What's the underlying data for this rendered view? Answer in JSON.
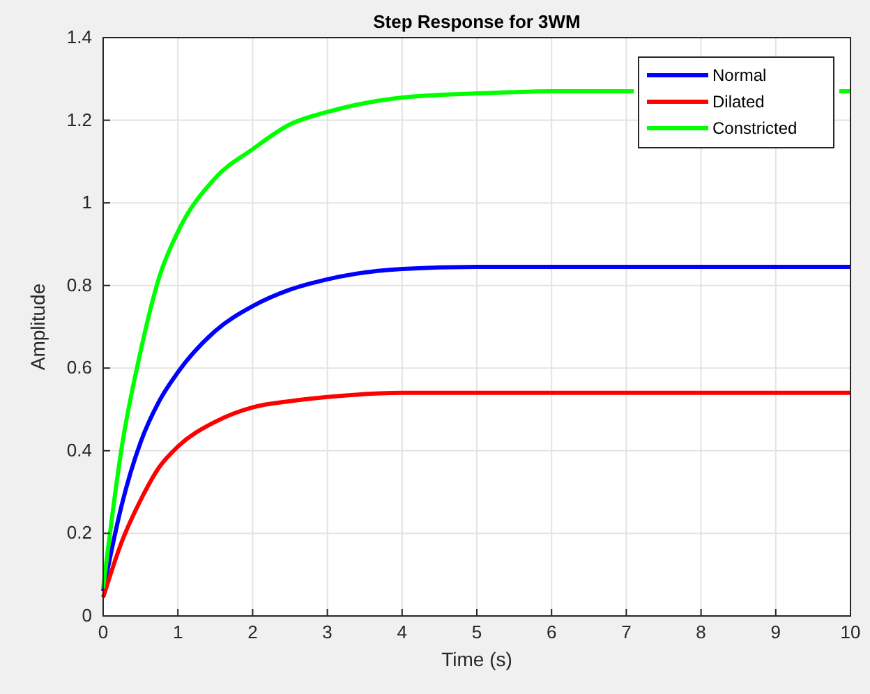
{
  "chart_data": {
    "type": "line",
    "title": "Step Response for 3WM",
    "xlabel": "Time (s)",
    "ylabel": "Amplitude",
    "xlim": [
      0,
      10
    ],
    "xticks": [
      0,
      1,
      2,
      3,
      4,
      5,
      6,
      7,
      8,
      9,
      10
    ],
    "ylim": [
      0,
      1.4
    ],
    "yticks": [
      0,
      0.2,
      0.4,
      0.6,
      0.8,
      1,
      1.2,
      1.4
    ],
    "grid": true,
    "legend": "top right",
    "line_style": "solid",
    "marker": "none",
    "x": [
      0,
      0.25,
      0.5,
      0.75,
      1,
      1.5,
      2,
      2.5,
      3,
      4,
      5,
      6,
      7,
      8,
      9,
      10
    ],
    "series": [
      {
        "name": "Normal",
        "color": "#0000ff",
        "values": [
          0.06,
          0.27,
          0.42,
          0.52,
          0.59,
          0.69,
          0.75,
          0.79,
          0.815,
          0.84,
          0.845,
          0.845,
          0.845,
          0.845,
          0.845,
          0.845
        ]
      },
      {
        "name": "Dilated",
        "color": "#ff0000",
        "values": [
          0.045,
          0.18,
          0.28,
          0.36,
          0.41,
          0.47,
          0.505,
          0.52,
          0.53,
          0.54,
          0.54,
          0.54,
          0.54,
          0.54,
          0.54,
          0.54
        ]
      },
      {
        "name": "Constricted",
        "color": "#00ff00",
        "x": [
          0,
          0.25,
          0.5,
          0.75,
          1,
          1.5,
          2,
          2.5,
          3,
          4,
          5,
          6,
          7,
          7.1,
          8.5,
          9.85,
          10
        ],
        "values": [
          0.067,
          0.41,
          0.64,
          0.82,
          0.93,
          1.06,
          1.13,
          1.19,
          1.22,
          1.255,
          1.265,
          1.27,
          1.27,
          1.27,
          null,
          1.27,
          1.27
        ]
      }
    ]
  }
}
